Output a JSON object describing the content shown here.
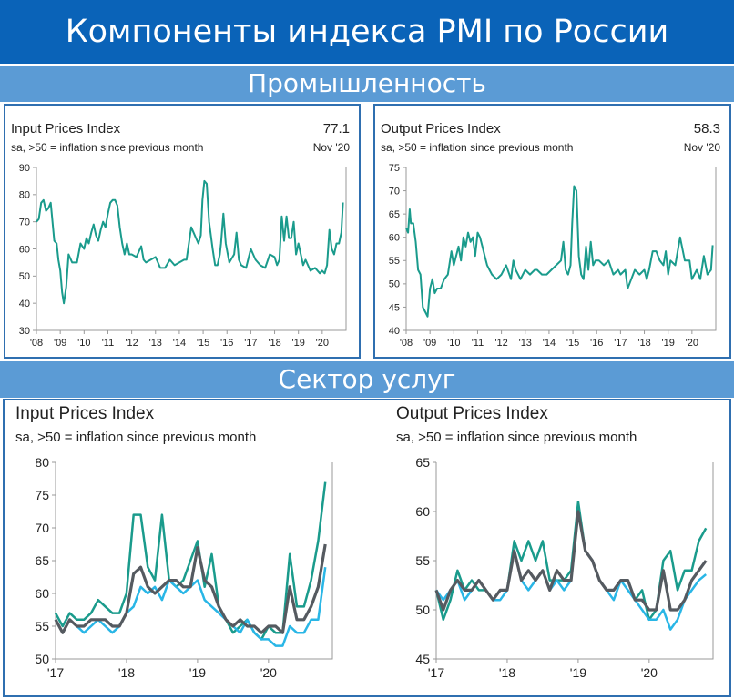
{
  "header": {
    "title": "Компоненты индекса PMI по России"
  },
  "sections": {
    "manufacturing": "Промышленность",
    "services": "Сектор услуг"
  },
  "colors": {
    "teal": "#1a9b8c",
    "blue": "#29b6e6",
    "gray": "#555a60",
    "title_bg": "#0a63b8",
    "section_bg": "#5b9bd5"
  },
  "chart_data": [
    {
      "type": "line",
      "title": "Input Prices Index",
      "subtitle": "sa, >50 = inflation since previous month",
      "latest_value": "77.1",
      "latest_date": "Nov '20",
      "ylim": [
        30,
        90
      ],
      "yticks": [
        30,
        40,
        50,
        60,
        70,
        80,
        90
      ],
      "xlim": [
        2008.0,
        2021.0
      ],
      "xticks": [
        "'08",
        "'09",
        "'10",
        "'11",
        "'12",
        "'13",
        "'14",
        "'15",
        "'16",
        "'17",
        "'18",
        "'19",
        "'20"
      ],
      "series": [
        {
          "color": "#1a9b8c",
          "x": [
            2008.0,
            2008.1,
            2008.2,
            2008.3,
            2008.4,
            2008.5,
            2008.6,
            2008.75,
            2008.85,
            2008.92,
            2009.0,
            2009.08,
            2009.15,
            2009.25,
            2009.35,
            2009.5,
            2009.7,
            2009.85,
            2010.0,
            2010.1,
            2010.2,
            2010.3,
            2010.4,
            2010.5,
            2010.6,
            2010.7,
            2010.8,
            2010.9,
            2011.0,
            2011.1,
            2011.2,
            2011.3,
            2011.4,
            2011.5,
            2011.6,
            2011.7,
            2011.8,
            2011.9,
            2012.0,
            2012.2,
            2012.4,
            2012.5,
            2012.6,
            2012.8,
            2013.0,
            2013.2,
            2013.4,
            2013.6,
            2013.8,
            2014.0,
            2014.2,
            2014.3,
            2014.5,
            2014.7,
            2014.8,
            2014.9,
            2014.97,
            2015.05,
            2015.15,
            2015.25,
            2015.4,
            2015.5,
            2015.6,
            2015.7,
            2015.75,
            2015.85,
            2015.95,
            2016.1,
            2016.3,
            2016.4,
            2016.5,
            2016.6,
            2016.8,
            2017.0,
            2017.2,
            2017.4,
            2017.6,
            2017.8,
            2018.0,
            2018.1,
            2018.2,
            2018.3,
            2018.4,
            2018.5,
            2018.6,
            2018.7,
            2018.8,
            2018.9,
            2019.0,
            2019.2,
            2019.3,
            2019.5,
            2019.7,
            2019.9,
            2020.0,
            2020.1,
            2020.2,
            2020.3,
            2020.4,
            2020.5,
            2020.6,
            2020.7,
            2020.8,
            2020.87
          ],
          "values": [
            70,
            71,
            77,
            78,
            74,
            75,
            77,
            63,
            62,
            56,
            52,
            44,
            40,
            46,
            58,
            55,
            55,
            62,
            60,
            64,
            62,
            66,
            69,
            65,
            63,
            67,
            70,
            68,
            73,
            77,
            78,
            78,
            76,
            68,
            62,
            58,
            62,
            58,
            58,
            57,
            61,
            56,
            55,
            56,
            57,
            53,
            53,
            56,
            54,
            55,
            56,
            56,
            68,
            64,
            62,
            65,
            78,
            85,
            84,
            70,
            60,
            54,
            54,
            58,
            62,
            73,
            62,
            55,
            58,
            66,
            56,
            54,
            53,
            60,
            56,
            54,
            53,
            58,
            57,
            54,
            56,
            72,
            63,
            72,
            64,
            64,
            70,
            58,
            62,
            54,
            56,
            52,
            53,
            51,
            52,
            51,
            54,
            67,
            60,
            58,
            62,
            62,
            66,
            77.1
          ]
        }
      ]
    },
    {
      "type": "line",
      "title": "Output Prices Index",
      "subtitle": "sa, >50 = inflation since previous month",
      "latest_value": "58.3",
      "latest_date": "Nov '20",
      "ylim": [
        40,
        75
      ],
      "yticks": [
        40,
        45,
        50,
        55,
        60,
        65,
        70,
        75
      ],
      "xlim": [
        2008.0,
        2021.0
      ],
      "xticks": [
        "'08",
        "'09",
        "'10",
        "'11",
        "'12",
        "'13",
        "'14",
        "'15",
        "'16",
        "'17",
        "'18",
        "'19",
        "'20"
      ],
      "series": [
        {
          "color": "#1a9b8c",
          "x": [
            2008.0,
            2008.08,
            2008.15,
            2008.2,
            2008.3,
            2008.4,
            2008.5,
            2008.6,
            2008.7,
            2008.8,
            2008.9,
            2009.0,
            2009.1,
            2009.2,
            2009.3,
            2009.45,
            2009.6,
            2009.75,
            2009.9,
            2010.0,
            2010.1,
            2010.2,
            2010.3,
            2010.4,
            2010.5,
            2010.6,
            2010.7,
            2010.8,
            2010.9,
            2011.0,
            2011.1,
            2011.2,
            2011.3,
            2011.4,
            2011.5,
            2011.6,
            2011.8,
            2012.0,
            2012.2,
            2012.4,
            2012.5,
            2012.6,
            2012.8,
            2013.0,
            2013.2,
            2013.4,
            2013.5,
            2013.7,
            2013.9,
            2014.1,
            2014.3,
            2014.5,
            2014.6,
            2014.7,
            2014.8,
            2014.9,
            2014.97,
            2015.05,
            2015.15,
            2015.25,
            2015.35,
            2015.45,
            2015.55,
            2015.65,
            2015.75,
            2015.85,
            2015.95,
            2016.1,
            2016.3,
            2016.5,
            2016.7,
            2016.9,
            2017.0,
            2017.2,
            2017.3,
            2017.45,
            2017.6,
            2017.8,
            2018.0,
            2018.1,
            2018.2,
            2018.35,
            2018.5,
            2018.65,
            2018.8,
            2018.9,
            2019.0,
            2019.1,
            2019.3,
            2019.5,
            2019.7,
            2019.9,
            2020.0,
            2020.1,
            2020.2,
            2020.35,
            2020.5,
            2020.65,
            2020.8,
            2020.87
          ],
          "values": [
            62,
            61,
            66,
            63,
            63,
            59,
            53,
            52,
            45,
            44,
            43,
            49,
            51,
            48,
            49,
            49,
            51,
            52,
            57,
            54,
            56,
            58,
            55,
            60,
            58,
            61,
            59,
            60,
            56,
            61,
            60,
            58,
            56,
            54,
            53,
            52,
            51,
            52,
            54,
            51,
            55,
            53,
            51,
            53,
            52,
            53,
            53,
            52,
            52,
            53,
            54,
            55,
            59,
            53,
            52,
            54,
            63,
            71,
            70,
            56,
            52,
            51,
            58,
            53,
            59,
            54,
            55,
            55,
            54,
            55,
            52,
            53,
            52,
            53,
            49,
            51,
            53,
            52,
            53,
            51,
            53,
            57,
            57,
            55,
            54,
            57,
            52,
            55,
            54,
            60,
            55,
            55,
            51,
            52,
            53,
            51,
            56,
            52,
            53,
            58.3
          ]
        }
      ]
    },
    {
      "type": "line",
      "title": "Input Prices Index",
      "subtitle": "sa, >50 = inflation since previous month",
      "ylim": [
        50,
        80
      ],
      "yticks": [
        50,
        55,
        60,
        65,
        70,
        75,
        80
      ],
      "xlim": [
        2017.0,
        2020.9
      ],
      "xticks": [
        "'17",
        "'18",
        "'19",
        "'20"
      ],
      "series": [
        {
          "color": "#1a9b8c",
          "x": [
            2017.0,
            2017.1,
            2017.2,
            2017.3,
            2017.4,
            2017.5,
            2017.6,
            2017.7,
            2017.8,
            2017.9,
            2018.0,
            2018.1,
            2018.2,
            2018.3,
            2018.4,
            2018.5,
            2018.6,
            2018.7,
            2018.8,
            2018.9,
            2019.0,
            2019.1,
            2019.2,
            2019.3,
            2019.4,
            2019.5,
            2019.6,
            2019.7,
            2019.8,
            2019.9,
            2020.0,
            2020.1,
            2020.2,
            2020.3,
            2020.4,
            2020.5,
            2020.6,
            2020.7,
            2020.8
          ],
          "values": [
            57,
            55,
            57,
            56,
            56,
            57,
            59,
            58,
            57,
            57,
            60,
            72,
            72,
            64,
            62,
            72,
            62,
            61,
            62,
            65,
            68,
            61,
            66,
            58,
            56,
            54,
            55,
            56,
            54,
            53,
            55,
            54,
            54,
            66,
            58,
            58,
            62,
            68,
            77
          ]
        },
        {
          "color": "#29b6e6",
          "x": [
            2017.0,
            2017.1,
            2017.2,
            2017.3,
            2017.4,
            2017.5,
            2017.6,
            2017.7,
            2017.8,
            2017.9,
            2018.0,
            2018.1,
            2018.2,
            2018.3,
            2018.4,
            2018.5,
            2018.6,
            2018.7,
            2018.8,
            2018.9,
            2019.0,
            2019.1,
            2019.2,
            2019.3,
            2019.4,
            2019.5,
            2019.6,
            2019.7,
            2019.8,
            2019.9,
            2020.0,
            2020.1,
            2020.2,
            2020.3,
            2020.4,
            2020.5,
            2020.6,
            2020.7,
            2020.8
          ],
          "values": [
            56,
            54,
            56,
            55,
            54,
            55,
            56,
            55,
            54,
            55,
            57,
            58,
            61,
            60,
            61,
            59,
            62,
            61,
            60,
            61,
            62,
            59,
            58,
            57,
            56,
            55,
            54,
            56,
            54,
            53,
            53,
            52,
            52,
            55,
            54,
            54,
            56,
            56,
            64
          ]
        },
        {
          "color": "#555a60",
          "x": [
            2017.0,
            2017.1,
            2017.2,
            2017.3,
            2017.4,
            2017.5,
            2017.6,
            2017.7,
            2017.8,
            2017.9,
            2018.0,
            2018.1,
            2018.2,
            2018.3,
            2018.4,
            2018.5,
            2018.6,
            2018.7,
            2018.8,
            2018.9,
            2019.0,
            2019.1,
            2019.2,
            2019.3,
            2019.4,
            2019.5,
            2019.6,
            2019.7,
            2019.8,
            2019.9,
            2020.0,
            2020.1,
            2020.2,
            2020.3,
            2020.4,
            2020.5,
            2020.6,
            2020.7,
            2020.8
          ],
          "values": [
            56,
            54,
            56,
            55,
            55,
            56,
            56,
            56,
            55,
            55,
            57,
            63,
            64,
            61,
            60,
            61,
            62,
            62,
            61,
            61,
            67,
            62,
            61,
            58,
            56,
            55,
            56,
            55,
            55,
            54,
            55,
            55,
            54,
            61,
            56,
            56,
            58,
            61,
            67.5
          ]
        }
      ]
    },
    {
      "type": "line",
      "title": "Output Prices Index",
      "subtitle": "sa, >50 = inflation since previous month",
      "ylim": [
        45,
        65
      ],
      "yticks": [
        45,
        50,
        55,
        60,
        65
      ],
      "xlim": [
        2017.0,
        2020.9
      ],
      "xticks": [
        "'17",
        "'18",
        "'19",
        "'20"
      ],
      "series": [
        {
          "color": "#1a9b8c",
          "x": [
            2017.0,
            2017.1,
            2017.2,
            2017.3,
            2017.4,
            2017.5,
            2017.6,
            2017.7,
            2017.8,
            2017.9,
            2018.0,
            2018.1,
            2018.2,
            2018.3,
            2018.4,
            2018.5,
            2018.6,
            2018.7,
            2018.8,
            2018.9,
            2019.0,
            2019.1,
            2019.2,
            2019.3,
            2019.4,
            2019.5,
            2019.6,
            2019.7,
            2019.8,
            2019.9,
            2020.0,
            2020.1,
            2020.2,
            2020.3,
            2020.4,
            2020.5,
            2020.6,
            2020.7,
            2020.8
          ],
          "values": [
            52,
            49,
            51,
            54,
            52,
            53,
            52,
            52,
            51,
            52,
            52,
            57,
            55,
            57,
            55,
            57,
            53,
            53,
            53,
            54,
            61,
            56,
            55,
            53,
            52,
            52,
            53,
            53,
            51,
            52,
            49,
            50,
            55,
            56,
            52,
            54,
            54,
            57,
            58.3
          ]
        },
        {
          "color": "#29b6e6",
          "x": [
            2017.0,
            2017.1,
            2017.2,
            2017.3,
            2017.4,
            2017.5,
            2017.6,
            2017.7,
            2017.8,
            2017.9,
            2018.0,
            2018.1,
            2018.2,
            2018.3,
            2018.4,
            2018.5,
            2018.6,
            2018.7,
            2018.8,
            2018.9,
            2019.0,
            2019.1,
            2019.2,
            2019.3,
            2019.4,
            2019.5,
            2019.6,
            2019.7,
            2019.8,
            2019.9,
            2020.0,
            2020.1,
            2020.2,
            2020.3,
            2020.4,
            2020.5,
            2020.6,
            2020.7,
            2020.8
          ],
          "values": [
            52,
            51,
            52,
            53,
            51,
            52,
            53,
            52,
            51,
            51,
            52,
            56,
            53,
            52,
            53,
            54,
            52,
            53,
            52,
            53,
            60,
            56,
            55,
            53,
            52,
            51,
            53,
            52,
            51,
            50,
            49,
            49,
            50,
            48,
            49,
            51,
            52,
            53,
            53.6
          ]
        },
        {
          "color": "#555a60",
          "x": [
            2017.0,
            2017.1,
            2017.2,
            2017.3,
            2017.4,
            2017.5,
            2017.6,
            2017.7,
            2017.8,
            2017.9,
            2018.0,
            2018.1,
            2018.2,
            2018.3,
            2018.4,
            2018.5,
            2018.6,
            2018.7,
            2018.8,
            2018.9,
            2019.0,
            2019.1,
            2019.2,
            2019.3,
            2019.4,
            2019.5,
            2019.6,
            2019.7,
            2019.8,
            2019.9,
            2020.0,
            2020.1,
            2020.2,
            2020.3,
            2020.4,
            2020.5,
            2020.6,
            2020.7,
            2020.8
          ],
          "values": [
            52,
            50,
            52,
            53,
            52,
            52,
            53,
            52,
            51,
            52,
            52,
            56,
            53,
            54,
            53,
            54,
            52,
            54,
            53,
            53,
            60,
            56,
            55,
            53,
            52,
            52,
            53,
            53,
            51,
            51,
            50,
            50,
            54,
            50,
            50,
            51,
            53,
            54,
            55
          ]
        }
      ]
    }
  ]
}
